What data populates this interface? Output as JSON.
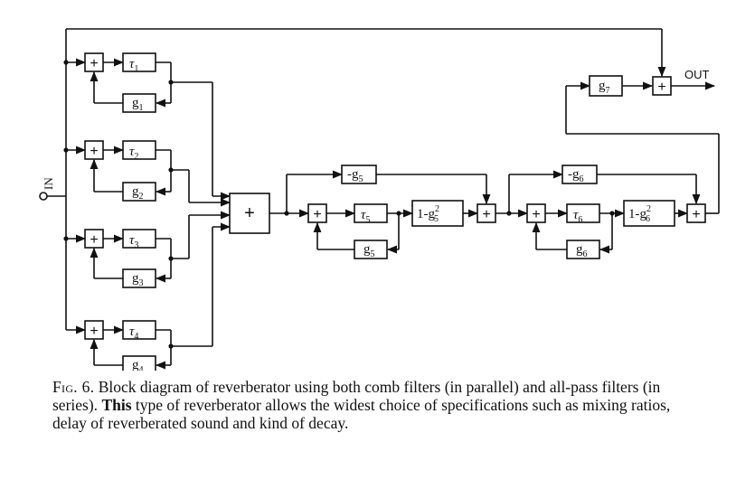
{
  "diagram": {
    "input_label": "IN",
    "output_label": "OUT",
    "sum_symbol": "+",
    "comb_filters": [
      {
        "delay": "τ",
        "sub": "1",
        "gain": "g",
        "gain_sub": "1"
      },
      {
        "delay": "τ",
        "sub": "2",
        "gain": "g",
        "gain_sub": "2"
      },
      {
        "delay": "τ",
        "sub": "3",
        "gain": "g",
        "gain_sub": "3"
      },
      {
        "delay": "τ",
        "sub": "4",
        "gain": "g",
        "gain_sub": "4"
      }
    ],
    "allpass_filters": [
      {
        "delay": "τ",
        "sub": "5",
        "gain": "g",
        "gain_sub": "5",
        "ff": "-g",
        "post": "1-g",
        "post_sup": "2"
      },
      {
        "delay": "τ",
        "sub": "6",
        "gain": "g",
        "gain_sub": "6",
        "ff": "-g",
        "post": "1-g",
        "post_sup": "2"
      }
    ],
    "mix_gain": {
      "label": "g",
      "sub": "7"
    }
  },
  "caption": {
    "fig_label": "Fig. 6.",
    "text_1": "Block diagram of reverberator using both comb filters (in parallel) and all-pass filters (in series).",
    "text_2": "This",
    "text_3": "type of reverberator allows the widest choice of specifications such as mixing ratios, delay of reverberated sound and kind of decay."
  }
}
